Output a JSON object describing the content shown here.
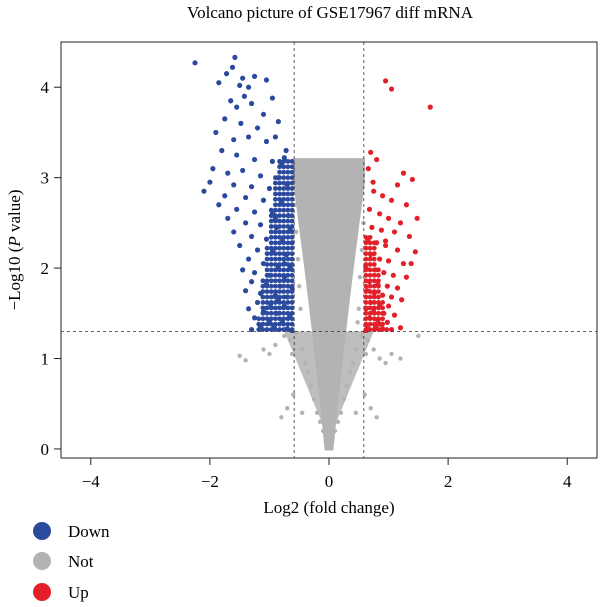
{
  "chart_data": {
    "type": "scatter",
    "title": "Volcano picture of GSE17967 diff mRNA",
    "xlabel": "Log2 (fold change)",
    "ylabel_prefix": "−Log10 (",
    "ylabel_italic": "P",
    "ylabel_suffix": " value)",
    "xlim": [
      -4.5,
      4.5
    ],
    "ylim": [
      -0.1,
      4.5
    ],
    "xticks": [
      -4,
      -2,
      0,
      2,
      4
    ],
    "yticks": [
      0,
      1,
      2,
      3,
      4
    ],
    "thresholds": {
      "log2fc": 0.585,
      "neg_log10_p": 1.3
    },
    "grid": false,
    "legend_position": "bottom-left",
    "colors": {
      "Down": "#2b4a9e",
      "Not": "#b3b3b3",
      "Up": "#e3202a"
    },
    "series": [
      {
        "name": "Down",
        "points": [
          [
            -2.25,
            4.27
          ],
          [
            -1.58,
            4.33
          ],
          [
            -1.62,
            4.22
          ],
          [
            -1.72,
            4.15
          ],
          [
            -1.45,
            4.1
          ],
          [
            -1.5,
            4.02
          ],
          [
            -1.85,
            4.05
          ],
          [
            -1.35,
            4.0
          ],
          [
            -1.25,
            4.12
          ],
          [
            -1.05,
            4.08
          ],
          [
            -1.42,
            3.9
          ],
          [
            -1.65,
            3.85
          ],
          [
            -1.55,
            3.78
          ],
          [
            -1.3,
            3.82
          ],
          [
            -1.1,
            3.7
          ],
          [
            -0.95,
            3.88
          ],
          [
            -1.75,
            3.65
          ],
          [
            -1.48,
            3.6
          ],
          [
            -1.2,
            3.55
          ],
          [
            -0.85,
            3.62
          ],
          [
            -1.9,
            3.5
          ],
          [
            -1.6,
            3.42
          ],
          [
            -1.35,
            3.45
          ],
          [
            -1.05,
            3.4
          ],
          [
            -0.72,
            3.3
          ],
          [
            -1.8,
            3.3
          ],
          [
            -1.55,
            3.25
          ],
          [
            -1.25,
            3.2
          ],
          [
            -0.95,
            3.18
          ],
          [
            -0.75,
            3.22
          ],
          [
            -1.95,
            3.1
          ],
          [
            -1.7,
            3.05
          ],
          [
            -1.45,
            3.08
          ],
          [
            -1.15,
            3.02
          ],
          [
            -0.85,
            3.0
          ],
          [
            -2.0,
            2.95
          ],
          [
            -1.6,
            2.92
          ],
          [
            -1.3,
            2.9
          ],
          [
            -1.0,
            2.88
          ],
          [
            -0.7,
            2.92
          ],
          [
            -2.1,
            2.85
          ],
          [
            -1.75,
            2.8
          ],
          [
            -1.4,
            2.78
          ],
          [
            -1.1,
            2.75
          ],
          [
            -0.8,
            2.72
          ],
          [
            -1.85,
            2.7
          ],
          [
            -1.55,
            2.65
          ],
          [
            -1.25,
            2.62
          ],
          [
            -0.95,
            2.6
          ],
          [
            -0.68,
            2.58
          ],
          [
            -1.7,
            2.55
          ],
          [
            -1.4,
            2.5
          ],
          [
            -1.15,
            2.48
          ],
          [
            -0.88,
            2.45
          ],
          [
            -0.65,
            2.42
          ],
          [
            -1.6,
            2.4
          ],
          [
            -1.3,
            2.35
          ],
          [
            -1.05,
            2.32
          ],
          [
            -0.78,
            2.3
          ],
          [
            -0.62,
            2.28
          ],
          [
            -1.5,
            2.25
          ],
          [
            -1.2,
            2.2
          ],
          [
            -0.95,
            2.18
          ],
          [
            -0.72,
            2.15
          ],
          [
            -1.35,
            2.1
          ],
          [
            -1.1,
            2.05
          ],
          [
            -0.85,
            2.02
          ],
          [
            -0.65,
            2.0
          ],
          [
            -1.45,
            1.98
          ],
          [
            -1.25,
            1.95
          ],
          [
            -1.0,
            1.92
          ],
          [
            -0.75,
            1.9
          ],
          [
            -1.3,
            1.85
          ],
          [
            -1.05,
            1.82
          ],
          [
            -0.82,
            1.8
          ],
          [
            -0.62,
            1.78
          ],
          [
            -1.4,
            1.75
          ],
          [
            -1.15,
            1.72
          ],
          [
            -0.9,
            1.7
          ],
          [
            -0.7,
            1.68
          ],
          [
            -1.2,
            1.62
          ],
          [
            -0.98,
            1.6
          ],
          [
            -0.75,
            1.58
          ],
          [
            -1.35,
            1.55
          ],
          [
            -1.1,
            1.52
          ],
          [
            -0.88,
            1.5
          ],
          [
            -0.66,
            1.48
          ],
          [
            -1.25,
            1.45
          ],
          [
            -1.0,
            1.42
          ],
          [
            -0.78,
            1.4
          ],
          [
            -1.15,
            1.36
          ],
          [
            -0.92,
            1.35
          ],
          [
            -0.7,
            1.33
          ],
          [
            -1.3,
            1.32
          ],
          [
            -0.62,
            1.31
          ],
          [
            -0.9,
            3.45
          ],
          [
            -0.8,
            3.15
          ],
          [
            -0.9,
            2.55
          ],
          [
            -0.75,
            2.05
          ],
          [
            -0.85,
            1.65
          ]
        ]
      },
      {
        "name": "Not",
        "points": [
          [
            -1.5,
            1.03
          ],
          [
            -1.4,
            0.98
          ],
          [
            -1.1,
            1.1
          ],
          [
            -1.0,
            1.05
          ],
          [
            -0.9,
            1.15
          ],
          [
            -0.75,
            1.25
          ],
          [
            -0.65,
            1.2
          ],
          [
            -0.55,
            1.28
          ],
          [
            -0.45,
            1.1
          ],
          [
            -0.4,
            0.95
          ],
          [
            -0.35,
            0.85
          ],
          [
            -0.3,
            0.7
          ],
          [
            -0.25,
            0.55
          ],
          [
            -0.2,
            0.4
          ],
          [
            -0.15,
            0.3
          ],
          [
            -0.1,
            0.2
          ],
          [
            -0.05,
            0.08
          ],
          [
            0.0,
            0.02
          ],
          [
            0.05,
            0.08
          ],
          [
            0.1,
            0.2
          ],
          [
            0.15,
            0.3
          ],
          [
            0.2,
            0.4
          ],
          [
            0.25,
            0.55
          ],
          [
            0.3,
            0.7
          ],
          [
            0.35,
            0.85
          ],
          [
            0.4,
            0.95
          ],
          [
            0.45,
            1.1
          ],
          [
            0.55,
            1.25
          ],
          [
            0.65,
            1.2
          ],
          [
            0.75,
            1.1
          ],
          [
            0.85,
            1.0
          ],
          [
            0.95,
            0.95
          ],
          [
            1.05,
            1.05
          ],
          [
            1.2,
            1.0
          ],
          [
            1.5,
            1.25
          ],
          [
            -0.5,
            1.8
          ],
          [
            -0.52,
            2.1
          ],
          [
            -0.55,
            2.4
          ],
          [
            -0.58,
            2.7
          ],
          [
            -0.48,
            1.55
          ],
          [
            0.5,
            1.55
          ],
          [
            0.52,
            1.9
          ],
          [
            0.55,
            2.2
          ],
          [
            0.58,
            2.5
          ],
          [
            0.48,
            1.4
          ],
          [
            -0.6,
            0.6
          ],
          [
            -0.7,
            0.45
          ],
          [
            -0.8,
            0.35
          ],
          [
            0.6,
            0.6
          ],
          [
            0.7,
            0.45
          ],
          [
            0.8,
            0.35
          ],
          [
            -0.62,
            1.05
          ],
          [
            0.62,
            1.05
          ],
          [
            -0.45,
            0.4
          ],
          [
            0.45,
            0.4
          ]
        ]
      },
      {
        "name": "Up",
        "points": [
          [
            1.7,
            3.78
          ],
          [
            0.95,
            4.07
          ],
          [
            1.05,
            3.98
          ],
          [
            0.7,
            3.28
          ],
          [
            0.8,
            3.2
          ],
          [
            1.25,
            3.05
          ],
          [
            1.4,
            2.98
          ],
          [
            1.15,
            2.92
          ],
          [
            0.75,
            2.85
          ],
          [
            0.9,
            2.8
          ],
          [
            1.05,
            2.75
          ],
          [
            1.3,
            2.7
          ],
          [
            0.68,
            2.65
          ],
          [
            0.85,
            2.6
          ],
          [
            1.0,
            2.55
          ],
          [
            1.2,
            2.5
          ],
          [
            0.72,
            2.45
          ],
          [
            0.88,
            2.42
          ],
          [
            1.1,
            2.4
          ],
          [
            1.35,
            2.35
          ],
          [
            0.65,
            2.32
          ],
          [
            0.8,
            2.28
          ],
          [
            0.95,
            2.25
          ],
          [
            1.15,
            2.2
          ],
          [
            1.45,
            2.18
          ],
          [
            0.7,
            2.15
          ],
          [
            0.85,
            2.1
          ],
          [
            1.0,
            2.08
          ],
          [
            1.25,
            2.05
          ],
          [
            0.62,
            2.0
          ],
          [
            0.78,
            1.98
          ],
          [
            0.92,
            1.95
          ],
          [
            1.08,
            1.92
          ],
          [
            1.3,
            1.9
          ],
          [
            0.68,
            1.85
          ],
          [
            0.82,
            1.82
          ],
          [
            0.98,
            1.8
          ],
          [
            1.15,
            1.78
          ],
          [
            0.64,
            1.75
          ],
          [
            0.76,
            1.72
          ],
          [
            0.9,
            1.7
          ],
          [
            1.05,
            1.68
          ],
          [
            1.22,
            1.65
          ],
          [
            0.7,
            1.62
          ],
          [
            0.85,
            1.6
          ],
          [
            1.0,
            1.58
          ],
          [
            0.62,
            1.55
          ],
          [
            0.75,
            1.52
          ],
          [
            0.92,
            1.5
          ],
          [
            1.1,
            1.48
          ],
          [
            0.68,
            1.45
          ],
          [
            0.82,
            1.42
          ],
          [
            0.98,
            1.4
          ],
          [
            0.64,
            1.36
          ],
          [
            0.78,
            1.35
          ],
          [
            0.9,
            1.33
          ],
          [
            1.05,
            1.32
          ],
          [
            0.62,
            1.31
          ],
          [
            1.2,
            1.34
          ],
          [
            0.85,
            1.38
          ],
          [
            0.66,
            3.1
          ],
          [
            0.74,
            2.95
          ],
          [
            1.48,
            2.55
          ],
          [
            1.38,
            2.05
          ],
          [
            0.95,
            2.3
          ]
        ]
      }
    ]
  }
}
